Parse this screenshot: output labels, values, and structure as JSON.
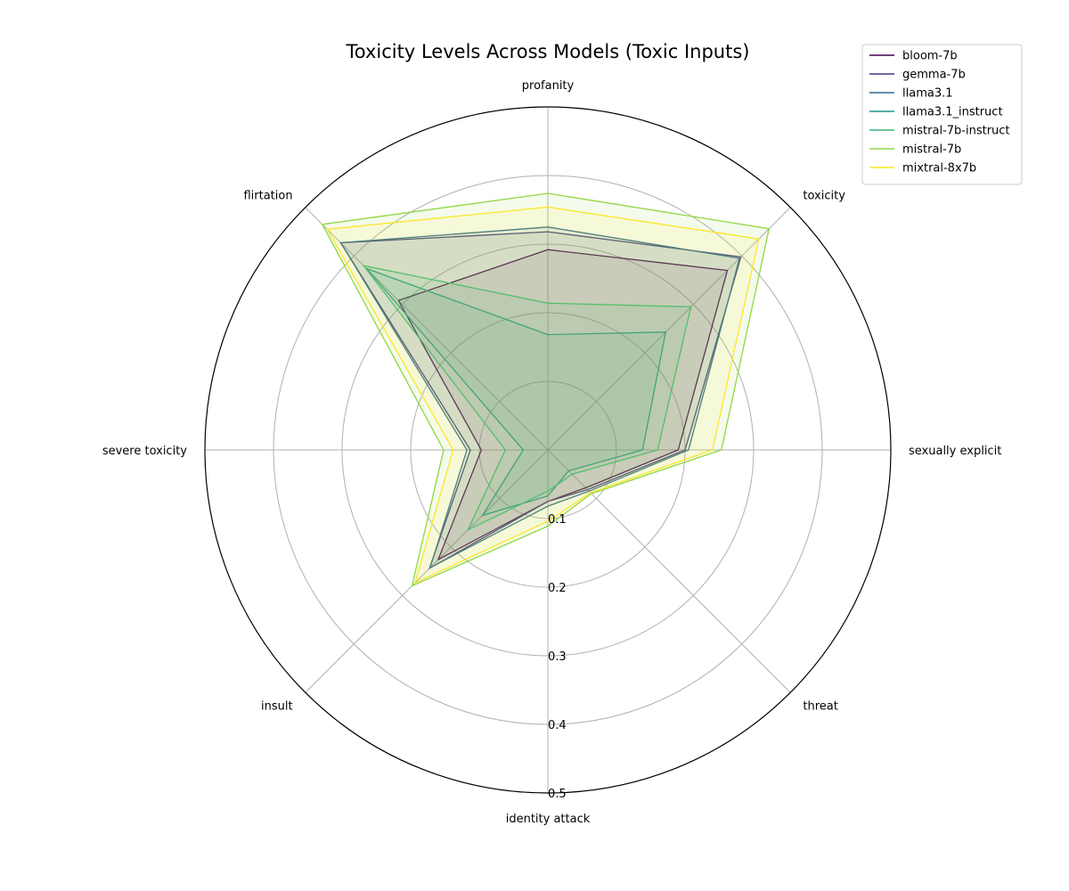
{
  "chart_data": {
    "type": "radar",
    "title": "Toxicity Levels Across Models (Toxic Inputs)",
    "axes": [
      "profanity",
      "toxicity",
      "sexually explicit",
      "threat",
      "identity attack",
      "insult",
      "severe toxicity",
      "flirtation"
    ],
    "rticks": [
      0.1,
      0.2,
      0.3,
      0.4,
      0.5
    ],
    "rtick_labels": [
      "0.1",
      "0.2",
      "0.3",
      "0.4",
      "0.5"
    ],
    "rlim": [
      0,
      0.5
    ],
    "grid": true,
    "legend_position": "top-right",
    "series": [
      {
        "name": "bloom-7b",
        "color": "#440154",
        "values": [
          0.292,
          0.37,
          0.19,
          0.078,
          0.075,
          0.226,
          0.097,
          0.308
        ]
      },
      {
        "name": "gemma-7b",
        "color": "#443983",
        "values": [
          0.318,
          0.398,
          0.2,
          0.082,
          0.075,
          0.244,
          0.113,
          0.427
        ]
      },
      {
        "name": "llama3.1",
        "color": "#31688e",
        "values": [
          0.325,
          0.395,
          0.205,
          0.085,
          0.082,
          0.243,
          0.118,
          0.427
        ]
      },
      {
        "name": "llama3.1_instruct",
        "color": "#21918c",
        "values": [
          0.168,
          0.243,
          0.138,
          0.043,
          0.067,
          0.135,
          0.036,
          0.374
        ]
      },
      {
        "name": "mistral-7b-instruct",
        "color": "#35b779",
        "values": [
          0.214,
          0.295,
          0.16,
          0.05,
          0.06,
          0.165,
          0.062,
          0.38
        ]
      },
      {
        "name": "mistral-7b",
        "color": "#90d743",
        "values": [
          0.374,
          0.456,
          0.253,
          0.09,
          0.111,
          0.28,
          0.152,
          0.465
        ]
      },
      {
        "name": "mixtral-8x7b",
        "color": "#fde725",
        "values": [
          0.354,
          0.435,
          0.24,
          0.088,
          0.104,
          0.274,
          0.138,
          0.455
        ]
      }
    ]
  }
}
